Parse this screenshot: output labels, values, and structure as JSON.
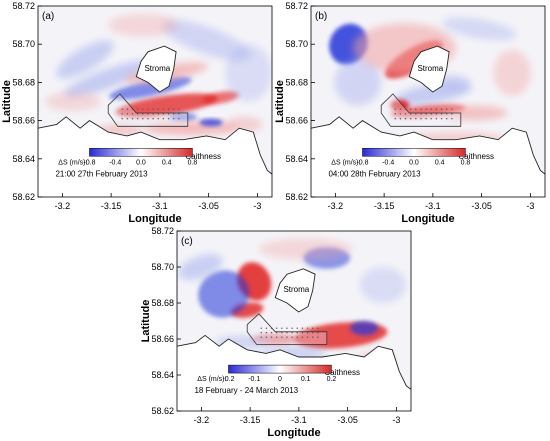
{
  "chart_data": [
    {
      "type": "heatmap",
      "panel_label": "(a)",
      "xlabel": "Longitude",
      "ylabel": "Latitude",
      "xlim": [
        -3.225,
        -2.985
      ],
      "ylim": [
        58.62,
        58.72
      ],
      "xticks": [
        -3.2,
        -3.15,
        -3.1,
        -3.05,
        -3
      ],
      "xtick_labels": [
        "-3.2",
        "-3.15",
        "-3.1",
        "-3.05",
        "-3"
      ],
      "yticks": [
        58.62,
        58.64,
        58.66,
        58.68,
        58.7,
        58.72
      ],
      "ytick_labels": [
        "58.62",
        "58.64",
        "58.66",
        "58.68",
        "58.70",
        "58.72"
      ],
      "colorbar": {
        "label": "ΔS (m/s):",
        "ticks": [
          -0.8,
          -0.4,
          0.0,
          0.4,
          0.8
        ],
        "tick_labels": [
          "-0.8",
          "-0.4",
          "0.0",
          "0.4",
          "0.8"
        ],
        "range": [
          -0.8,
          0.8
        ],
        "colors": [
          "#2a2ad6",
          "#ffffff",
          "#d62a2a"
        ]
      },
      "annotations": [
        "21:00 27th February 2013",
        "Stroma",
        "Caithness"
      ],
      "grid": false
    },
    {
      "type": "heatmap",
      "panel_label": "(b)",
      "xlabel": "Longitude",
      "ylabel": "Latitude",
      "xlim": [
        -3.225,
        -2.985
      ],
      "ylim": [
        58.62,
        58.72
      ],
      "xticks": [
        -3.2,
        -3.15,
        -3.1,
        -3.05,
        -3
      ],
      "xtick_labels": [
        "-3.2",
        "-3.15",
        "-3.1",
        "-3.05",
        "-3"
      ],
      "yticks": [
        58.62,
        58.64,
        58.66,
        58.68,
        58.7,
        58.72
      ],
      "ytick_labels": [
        "58.62",
        "58.64",
        "58.66",
        "58.68",
        "58.70",
        "58.72"
      ],
      "colorbar": {
        "label": "ΔS (m/s):",
        "ticks": [
          -0.8,
          -0.4,
          0.0,
          0.4,
          0.8
        ],
        "tick_labels": [
          "-0.8",
          "-0.4",
          "0.0",
          "0.4",
          "0.8"
        ],
        "range": [
          -0.8,
          0.8
        ],
        "colors": [
          "#2a2ad6",
          "#ffffff",
          "#d62a2a"
        ]
      },
      "annotations": [
        "04:00 28th February 2013",
        "Stroma",
        "Caithness"
      ],
      "grid": false
    },
    {
      "type": "heatmap",
      "panel_label": "(c)",
      "xlabel": "Longitude",
      "ylabel": "Latitude",
      "xlim": [
        -3.225,
        -2.985
      ],
      "ylim": [
        58.62,
        58.72
      ],
      "xticks": [
        -3.2,
        -3.15,
        -3.1,
        -3.05,
        -3
      ],
      "xtick_labels": [
        "-3.2",
        "-3.15",
        "-3.1",
        "-3.05",
        "-3"
      ],
      "yticks": [
        58.62,
        58.64,
        58.66,
        58.68,
        58.7,
        58.72
      ],
      "ytick_labels": [
        "58.62",
        "58.64",
        "58.66",
        "58.68",
        "58.70",
        "58.72"
      ],
      "colorbar": {
        "label": "ΔS (m/s):",
        "ticks": [
          -0.2,
          -0.1,
          0,
          0.1,
          0.2
        ],
        "tick_labels": [
          "-0.2",
          "-0.1",
          "0",
          "0.1",
          "0.2"
        ],
        "range": [
          -0.2,
          0.2
        ],
        "colors": [
          "#2a2ad6",
          "#ffffff",
          "#d62a2a"
        ]
      },
      "annotations": [
        "18 February - 24 March 2013",
        "Stroma",
        "Caithness"
      ],
      "grid": false
    }
  ]
}
